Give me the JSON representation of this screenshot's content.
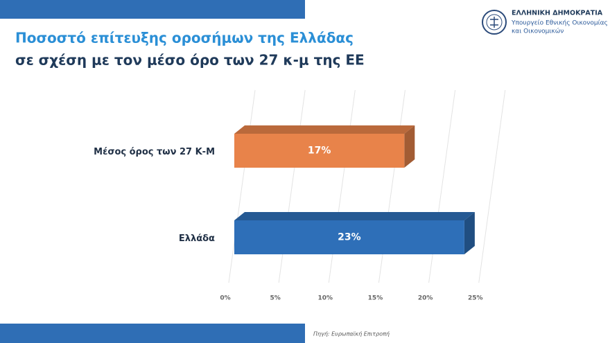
{
  "header": {
    "title": "Ποσοστό επίτευξης οροσήμων της Ελλάδας",
    "subtitle": "σε σχέση με τον μέσο όρο των 27 κ-μ της ΕΕ",
    "logo": {
      "line1": "ΕΛΛΗΝΙΚΗ ΔΗΜΟΚΡΑΤΙΑ",
      "line2": "Υπουργείο Εθνικής Οικονομίας",
      "line3": "και Οικονομικών"
    }
  },
  "chart_data": {
    "type": "bar",
    "orientation": "horizontal",
    "categories": [
      "Μέσος όρος των 27 Κ-Μ",
      "Ελλάδα"
    ],
    "values": [
      17,
      23
    ],
    "value_labels": [
      "17%",
      "23%"
    ],
    "colors": [
      "#e8834a",
      "#2e6fb8"
    ],
    "xlim": [
      0,
      25
    ],
    "xticks": [
      {
        "value": 0,
        "label": "0%"
      },
      {
        "value": 5,
        "label": "5%"
      },
      {
        "value": 10,
        "label": "10%"
      },
      {
        "value": 15,
        "label": "15%"
      },
      {
        "value": 20,
        "label": "20%"
      },
      {
        "value": 25,
        "label": "25%"
      }
    ],
    "grid": true
  },
  "footer": {
    "source": "Πηγή: Ευρωπαϊκή Επιτροπή"
  }
}
